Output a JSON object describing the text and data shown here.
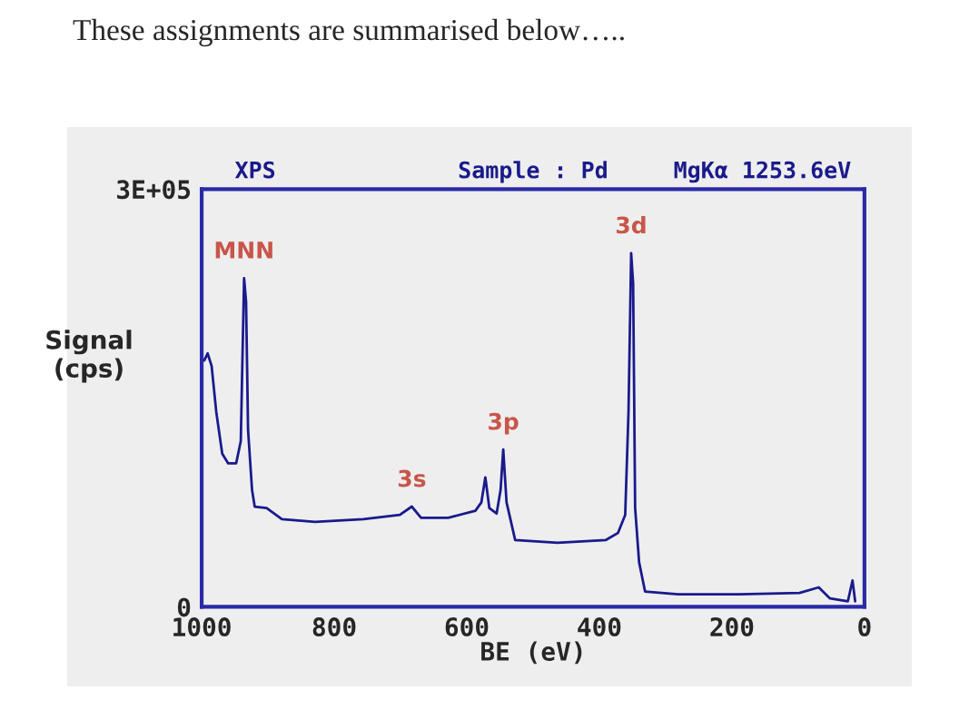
{
  "chart_data": {
    "type": "line",
    "title": "These assignments are summarised below…..",
    "annotations": [
      "XPS",
      "Sample : Pd",
      "MgKα 1253.6eV",
      {
        "text": "MNN",
        "x": 936,
        "y": 236000
      },
      {
        "text": "3s",
        "x": 683,
        "y": 72000
      },
      {
        "text": "3p",
        "x": 545,
        "y": 113000
      },
      {
        "text": "3d",
        "x": 352,
        "y": 254000
      }
    ],
    "xlabel": "BE (eV)",
    "ylabel": "Signal\n(cps)",
    "series": [
      {
        "color": "#1a1a8c",
        "x": [
          996,
          991,
          985,
          978,
          969,
          960,
          948,
          941,
          936,
          933,
          930,
          924,
          920,
          902,
          879,
          829,
          756,
          701,
          683,
          669,
          628,
          587,
          578,
          572,
          566,
          555,
          549,
          545,
          540,
          527,
          463,
          390,
          372,
          361,
          356,
          352,
          349,
          346,
          340,
          331,
          281,
          189,
          98,
          69,
          52,
          25,
          18,
          14
        ],
        "values": [
          177000,
          182000,
          173000,
          140000,
          110000,
          103000,
          103000,
          119000,
          236000,
          219000,
          127000,
          84000,
          72000,
          71000,
          63000,
          61000,
          63000,
          66000,
          72000,
          64000,
          64000,
          69000,
          75000,
          93000,
          71000,
          67000,
          84000,
          113000,
          75000,
          48000,
          46000,
          48000,
          53000,
          66000,
          140000,
          254000,
          232000,
          71000,
          32000,
          11000,
          9000,
          9000,
          10000,
          14000,
          6000,
          4000,
          19000,
          4000
        ]
      }
    ],
    "xlim": [
      1000,
      0
    ],
    "xticks": [
      1000,
      800,
      600,
      400,
      200,
      0
    ],
    "ylim": [
      0,
      300000
    ],
    "yticks": [
      0,
      {
        "value": 300000,
        "label": "3E+05"
      }
    ],
    "grid": false,
    "legend": false,
    "marker": "none",
    "line_style": "solid"
  }
}
